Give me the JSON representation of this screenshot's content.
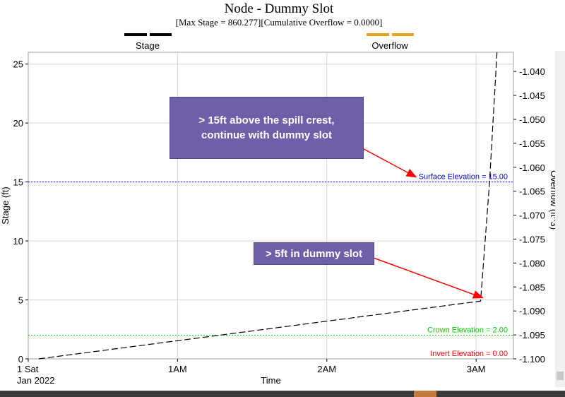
{
  "chart_data": {
    "type": "line",
    "title": "Node - Dummy Slot",
    "subtitle": "[Max  Stage = 860.277][Cumulative Overflow = 0.0000]",
    "xlabel": "Time",
    "ylabel": "Stage (ft)",
    "y2label": "Overflow (ft^3)",
    "x_ticks": [
      {
        "label": "1 Sat",
        "sub": "Jan 2022",
        "hours": 0
      },
      {
        "label": "1AM",
        "sub": "",
        "hours": 1
      },
      {
        "label": "2AM",
        "sub": "",
        "hours": 2
      },
      {
        "label": "3AM",
        "sub": "",
        "hours": 3
      }
    ],
    "xlim_hours": [
      0,
      3.25
    ],
    "ylim": [
      0,
      26
    ],
    "y_ticks": [
      0,
      5,
      10,
      15,
      20,
      25
    ],
    "y2lim": [
      -1.1,
      -1.036
    ],
    "y2_ticks": [
      "-1.040",
      "-1.045",
      "-1.050",
      "-1.055",
      "-1.060",
      "-1.065",
      "-1.070",
      "-1.075",
      "-1.080",
      "-1.085",
      "-1.090",
      "-1.095",
      "-1.100"
    ],
    "grid": true,
    "series": [
      {
        "name": "Stage",
        "color": "#000000",
        "axis": "left",
        "dash": "dashed",
        "x_hours": [
          0.07,
          3.03,
          3.09,
          3.14
        ],
        "values": [
          0.0,
          4.9,
          15.0,
          26.0
        ]
      },
      {
        "name": "Overflow",
        "color": "#e8a317",
        "axis": "right",
        "values": []
      }
    ],
    "reference_lines": [
      {
        "label": "Surface Elevation = 15.00",
        "value": 15.0,
        "color": "#0000dd"
      },
      {
        "label": "Crown Elevation = 2.00",
        "value": 2.0,
        "color": "#00cc00"
      },
      {
        "label": "Invert Elevation = 0.00",
        "value": 0.0,
        "color": "#ff0000"
      }
    ],
    "annotations": [
      {
        "text_lines": [
          "> 15ft above the spill crest,",
          "continue with dummy slot"
        ],
        "point": {
          "hours": 3.09,
          "value": 15.0
        }
      },
      {
        "text_lines": [
          "> 5ft in dummy slot"
        ],
        "point": {
          "hours": 3.03,
          "value": 5.0
        }
      }
    ]
  }
}
